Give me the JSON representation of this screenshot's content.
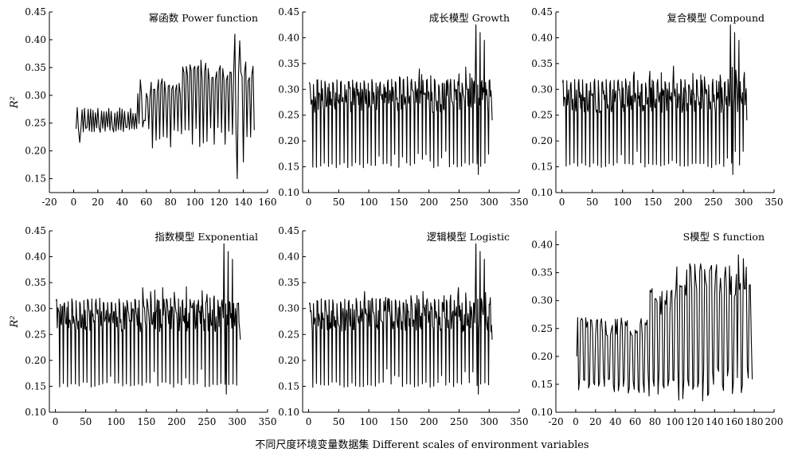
{
  "figure": {
    "xlabel": "不同尺度环境变量数据集 Different scales of environment variables"
  },
  "chart_data": [
    {
      "type": "line",
      "title": "幂函数 Power function",
      "ylabel": "R²",
      "xlim": [
        -20,
        160
      ],
      "ylim": [
        0.125,
        0.45
      ],
      "xticks": [
        -20,
        0,
        20,
        40,
        60,
        80,
        100,
        120,
        140,
        160
      ],
      "yticks": [
        0.15,
        0.2,
        0.25,
        0.3,
        0.35,
        0.4,
        0.45
      ],
      "n_points": 148,
      "x_start": 2,
      "series": [
        {
          "segments": [
            {
              "x_end": 52,
              "hi": 0.272,
              "lo": 0.238,
              "period": 2.2
            },
            {
              "x_end": 63,
              "hi": 0.305,
              "lo": 0.245,
              "period": 2.5
            },
            {
              "x_end": 88,
              "hi": 0.318,
              "lo": 0.222,
              "period": 3
            },
            {
              "x_end": 110,
              "hi": 0.345,
              "lo": 0.225,
              "period": 3
            },
            {
              "x_end": 148,
              "hi": 0.335,
              "lo": 0.23,
              "period": 3
            }
          ],
          "spikes": [
            {
              "x": 3,
              "y": 0.278
            },
            {
              "x": 5,
              "y": 0.215
            },
            {
              "x": 55,
              "y": 0.328
            },
            {
              "x": 58,
              "y": 0.255
            },
            {
              "x": 93,
              "y": 0.352
            },
            {
              "x": 96,
              "y": 0.355
            },
            {
              "x": 80,
              "y": 0.207
            },
            {
              "x": 133,
              "y": 0.41
            },
            {
              "x": 135,
              "y": 0.15
            },
            {
              "x": 137,
              "y": 0.398
            },
            {
              "x": 140,
              "y": 0.18
            },
            {
              "x": 142,
              "y": 0.36
            },
            {
              "x": 145,
              "y": 0.332
            },
            {
              "x": 146,
              "y": 0.225
            }
          ]
        }
      ]
    },
    {
      "type": "line",
      "title": "成长模型 Growth",
      "xlim": [
        -10,
        350
      ],
      "ylim": [
        0.1,
        0.45
      ],
      "xticks": [
        0,
        50,
        100,
        150,
        200,
        250,
        300,
        350
      ],
      "yticks": [
        0.1,
        0.15,
        0.2,
        0.25,
        0.3,
        0.35,
        0.4,
        0.45
      ],
      "n_points": 305,
      "x_start": 1,
      "series": [
        {
          "band_hi": 0.305,
          "band_lo": 0.255,
          "dip": 0.148,
          "peak": 0.32,
          "period": 6.5,
          "spikes": [
            {
              "x": 278,
              "y": 0.425
            },
            {
              "x": 282,
              "y": 0.135
            },
            {
              "x": 285,
              "y": 0.41
            },
            {
              "x": 292,
              "y": 0.395
            },
            {
              "x": 305,
              "y": 0.24
            }
          ]
        }
      ]
    },
    {
      "type": "line",
      "title": "复合模型 Compound",
      "xlim": [
        -10,
        350
      ],
      "ylim": [
        0.1,
        0.45
      ],
      "xticks": [
        0,
        50,
        100,
        150,
        200,
        250,
        300,
        350
      ],
      "yticks": [
        0.1,
        0.15,
        0.2,
        0.25,
        0.3,
        0.35,
        0.4,
        0.45
      ],
      "n_points": 305,
      "x_start": 1,
      "series": [
        {
          "band_hi": 0.305,
          "band_lo": 0.255,
          "dip": 0.148,
          "peak": 0.32,
          "period": 6.5,
          "spikes": [
            {
              "x": 278,
              "y": 0.425
            },
            {
              "x": 282,
              "y": 0.135
            },
            {
              "x": 285,
              "y": 0.41
            },
            {
              "x": 292,
              "y": 0.395
            },
            {
              "x": 305,
              "y": 0.24
            }
          ]
        }
      ]
    },
    {
      "type": "line",
      "title": "指数模型 Exponential",
      "ylabel": "R²",
      "xlim": [
        -10,
        350
      ],
      "ylim": [
        0.1,
        0.45
      ],
      "xticks": [
        0,
        50,
        100,
        150,
        200,
        250,
        300,
        350
      ],
      "yticks": [
        0.1,
        0.15,
        0.2,
        0.25,
        0.3,
        0.35,
        0.4,
        0.45
      ],
      "n_points": 305,
      "x_start": 1,
      "series": [
        {
          "band_hi": 0.305,
          "band_lo": 0.255,
          "dip": 0.148,
          "peak": 0.32,
          "period": 6.5,
          "spikes": [
            {
              "x": 278,
              "y": 0.425
            },
            {
              "x": 282,
              "y": 0.135
            },
            {
              "x": 285,
              "y": 0.41
            },
            {
              "x": 292,
              "y": 0.395
            },
            {
              "x": 305,
              "y": 0.24
            }
          ]
        }
      ]
    },
    {
      "type": "line",
      "title": "逻辑模型 Logistic",
      "xlim": [
        -10,
        350
      ],
      "ylim": [
        0.1,
        0.45
      ],
      "xticks": [
        0,
        50,
        100,
        150,
        200,
        250,
        300,
        350
      ],
      "yticks": [
        0.1,
        0.15,
        0.2,
        0.25,
        0.3,
        0.35,
        0.4,
        0.45
      ],
      "n_points": 305,
      "x_start": 1,
      "series": [
        {
          "band_hi": 0.305,
          "band_lo": 0.255,
          "dip": 0.148,
          "peak": 0.32,
          "period": 6.5,
          "spikes": [
            {
              "x": 278,
              "y": 0.425
            },
            {
              "x": 282,
              "y": 0.135
            },
            {
              "x": 285,
              "y": 0.41
            },
            {
              "x": 292,
              "y": 0.395
            },
            {
              "x": 305,
              "y": 0.24
            }
          ]
        }
      ]
    },
    {
      "type": "line",
      "title": "S模型 S function",
      "xlim": [
        -20,
        200
      ],
      "ylim": [
        0.1,
        0.425
      ],
      "xticks": [
        -20,
        0,
        20,
        40,
        60,
        80,
        100,
        120,
        140,
        160,
        180,
        200
      ],
      "yticks": [
        0.1,
        0.15,
        0.2,
        0.25,
        0.3,
        0.35,
        0.4
      ],
      "n_points": 178,
      "x_start": 1,
      "series": [
        {
          "segments": [
            {
              "x_end": 72,
              "hi": 0.252,
              "lo": 0.15,
              "period": 5
            },
            {
              "x_end": 100,
              "hi": 0.3,
              "lo": 0.15,
              "period": 5
            },
            {
              "x_end": 178,
              "hi": 0.335,
              "lo": 0.15,
              "period": 5
            }
          ],
          "spikes": [
            {
              "x": 1,
              "y": 0.2
            },
            {
              "x": 3,
              "y": 0.14
            },
            {
              "x": 76,
              "y": 0.315
            },
            {
              "x": 164,
              "y": 0.382
            },
            {
              "x": 167,
              "y": 0.135
            },
            {
              "x": 169,
              "y": 0.375
            },
            {
              "x": 177,
              "y": 0.23
            }
          ]
        }
      ]
    }
  ]
}
